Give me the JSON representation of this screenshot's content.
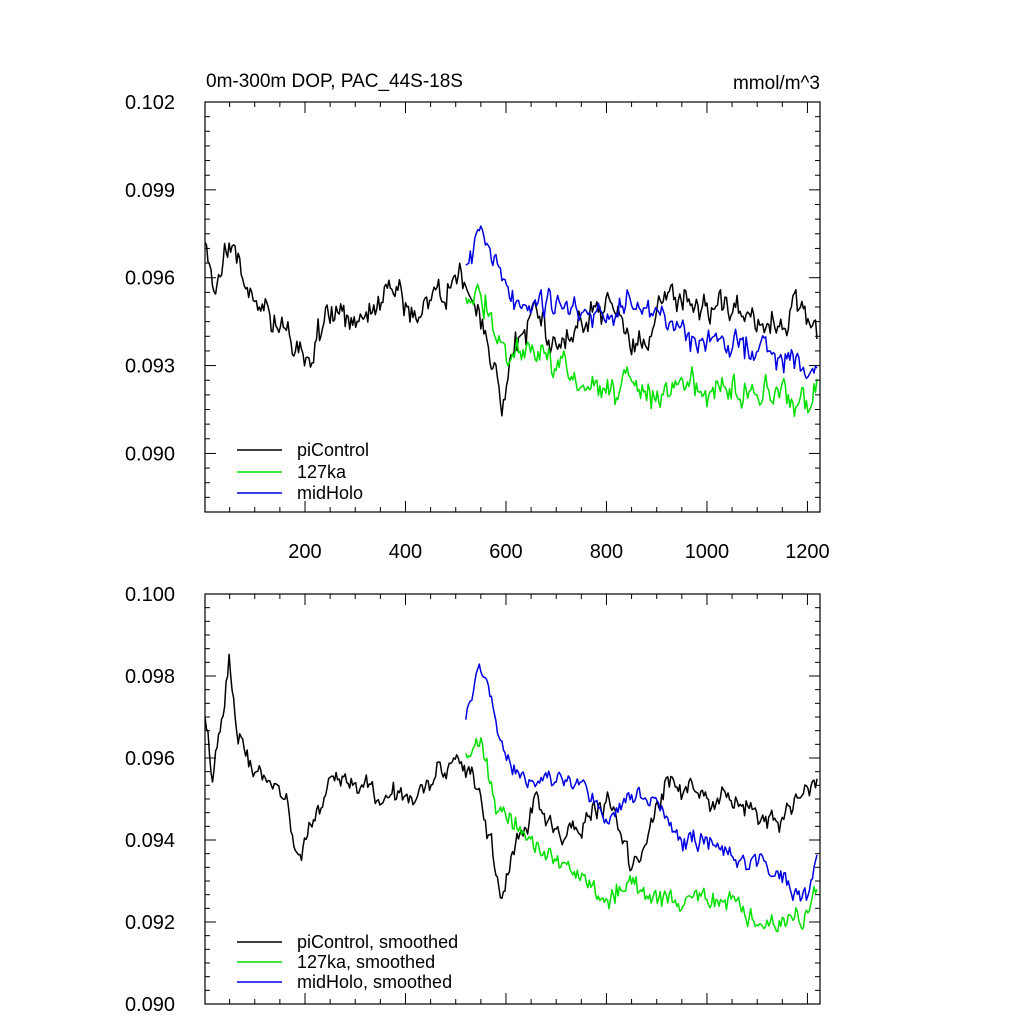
{
  "chart_data": [
    {
      "type": "line",
      "title": "0m-300m DOP, PAC_44S-18S",
      "units": "mmol/m^3",
      "xlabel": "",
      "ylabel": "",
      "xlim": [
        1,
        1225
      ],
      "ylim": [
        0.088,
        0.102
      ],
      "x_ticks": [
        200,
        400,
        600,
        800,
        1000,
        1200
      ],
      "x_tick_labels": [
        "200",
        "400",
        "600",
        "800",
        "1000",
        "1200"
      ],
      "y_ticks": [
        0.09,
        0.093,
        0.096,
        0.099,
        0.102
      ],
      "y_tick_labels": [
        "0.090",
        "0.093",
        "0.096",
        "0.099",
        "0.102"
      ],
      "legend_position": "bottom-left",
      "series": [
        {
          "name": "piControl",
          "color": "#000000",
          "x_range": [
            1,
            1220
          ],
          "noise_amplitude": 0.0014,
          "anchors": [
            [
              1,
              0.097
            ],
            [
              20,
              0.095
            ],
            [
              40,
              0.0968
            ],
            [
              60,
              0.0975
            ],
            [
              80,
              0.0955
            ],
            [
              100,
              0.095
            ],
            [
              150,
              0.0945
            ],
            [
              190,
              0.0935
            ],
            [
              200,
              0.0932
            ],
            [
              250,
              0.095
            ],
            [
              300,
              0.0945
            ],
            [
              350,
              0.0948
            ],
            [
              380,
              0.096
            ],
            [
              420,
              0.0945
            ],
            [
              460,
              0.0955
            ],
            [
              520,
              0.096
            ],
            [
              560,
              0.094
            ],
            [
              590,
              0.0915
            ],
            [
              620,
              0.0935
            ],
            [
              650,
              0.095
            ],
            [
              700,
              0.0935
            ],
            [
              750,
              0.0945
            ],
            [
              800,
              0.095
            ],
            [
              850,
              0.094
            ],
            [
              880,
              0.0935
            ],
            [
              920,
              0.0955
            ],
            [
              1000,
              0.095
            ],
            [
              1050,
              0.095
            ],
            [
              1100,
              0.094
            ],
            [
              1150,
              0.0945
            ],
            [
              1190,
              0.095
            ],
            [
              1220,
              0.0945
            ]
          ]
        },
        {
          "name": "127ka",
          "color": "#00e000",
          "x_range": [
            520,
            1220
          ],
          "noise_amplitude": 0.0013,
          "anchors": [
            [
              520,
              0.0955
            ],
            [
              560,
              0.095
            ],
            [
              600,
              0.0935
            ],
            [
              650,
              0.0935
            ],
            [
              700,
              0.093
            ],
            [
              750,
              0.0925
            ],
            [
              800,
              0.092
            ],
            [
              850,
              0.0925
            ],
            [
              900,
              0.092
            ],
            [
              950,
              0.0925
            ],
            [
              1000,
              0.092
            ],
            [
              1050,
              0.0925
            ],
            [
              1100,
              0.092
            ],
            [
              1150,
              0.092
            ],
            [
              1200,
              0.0918
            ],
            [
              1220,
              0.0925
            ]
          ]
        },
        {
          "name": "midHolo",
          "color": "#0000e0",
          "x_range": [
            520,
            1220
          ],
          "noise_amplitude": 0.0013,
          "anchors": [
            [
              520,
              0.096
            ],
            [
              545,
              0.0975
            ],
            [
              580,
              0.0965
            ],
            [
              620,
              0.095
            ],
            [
              700,
              0.095
            ],
            [
              750,
              0.095
            ],
            [
              800,
              0.0945
            ],
            [
              850,
              0.095
            ],
            [
              900,
              0.095
            ],
            [
              950,
              0.094
            ],
            [
              1000,
              0.094
            ],
            [
              1050,
              0.0935
            ],
            [
              1100,
              0.0935
            ],
            [
              1150,
              0.0935
            ],
            [
              1200,
              0.093
            ],
            [
              1220,
              0.093
            ]
          ]
        }
      ]
    },
    {
      "type": "line",
      "title": "",
      "xlabel": "",
      "ylabel": "",
      "xlim": [
        1,
        1225
      ],
      "ylim": [
        0.09,
        0.1
      ],
      "x_ticks": [
        200,
        400,
        600,
        800,
        1000,
        1200
      ],
      "x_tick_labels": [],
      "y_ticks": [
        0.09,
        0.092,
        0.094,
        0.096,
        0.098,
        0.1
      ],
      "y_tick_labels": [
        "0.090",
        "0.092",
        "0.094",
        "0.096",
        "0.098",
        "0.100"
      ],
      "legend_position": "bottom-left",
      "series": [
        {
          "name": "piControl, smoothed",
          "color": "#000000",
          "x_range": [
            1,
            1220
          ],
          "noise_amplitude": 0.0007,
          "anchors": [
            [
              1,
              0.0972
            ],
            [
              15,
              0.0955
            ],
            [
              30,
              0.0965
            ],
            [
              50,
              0.0985
            ],
            [
              60,
              0.097
            ],
            [
              80,
              0.096
            ],
            [
              120,
              0.0955
            ],
            [
              160,
              0.095
            ],
            [
              185,
              0.0935
            ],
            [
              200,
              0.094
            ],
            [
              250,
              0.0955
            ],
            [
              300,
              0.0955
            ],
            [
              350,
              0.095
            ],
            [
              400,
              0.095
            ],
            [
              450,
              0.0955
            ],
            [
              500,
              0.096
            ],
            [
              540,
              0.0955
            ],
            [
              570,
              0.094
            ],
            [
              590,
              0.0925
            ],
            [
              620,
              0.094
            ],
            [
              660,
              0.095
            ],
            [
              700,
              0.094
            ],
            [
              750,
              0.0945
            ],
            [
              800,
              0.095
            ],
            [
              850,
              0.0935
            ],
            [
              880,
              0.094
            ],
            [
              920,
              0.0955
            ],
            [
              1000,
              0.095
            ],
            [
              1050,
              0.095
            ],
            [
              1100,
              0.0945
            ],
            [
              1150,
              0.0945
            ],
            [
              1190,
              0.095
            ],
            [
              1215,
              0.0955
            ]
          ]
        },
        {
          "name": "127ka, smoothed",
          "color": "#00e000",
          "x_range": [
            520,
            1220
          ],
          "noise_amplitude": 0.0007,
          "anchors": [
            [
              520,
              0.096
            ],
            [
              550,
              0.0965
            ],
            [
              580,
              0.095
            ],
            [
              600,
              0.0945
            ],
            [
              650,
              0.094
            ],
            [
              700,
              0.0935
            ],
            [
              750,
              0.093
            ],
            [
              800,
              0.0925
            ],
            [
              850,
              0.093
            ],
            [
              900,
              0.0925
            ],
            [
              950,
              0.0925
            ],
            [
              1000,
              0.0925
            ],
            [
              1050,
              0.0925
            ],
            [
              1100,
              0.092
            ],
            [
              1150,
              0.092
            ],
            [
              1200,
              0.0922
            ],
            [
              1220,
              0.0928
            ]
          ]
        },
        {
          "name": "midHolo, smoothed",
          "color": "#0000e0",
          "x_range": [
            520,
            1220
          ],
          "noise_amplitude": 0.0006,
          "anchors": [
            [
              520,
              0.097
            ],
            [
              545,
              0.0983
            ],
            [
              570,
              0.0975
            ],
            [
              600,
              0.096
            ],
            [
              650,
              0.0955
            ],
            [
              700,
              0.0955
            ],
            [
              750,
              0.0955
            ],
            [
              800,
              0.0945
            ],
            [
              850,
              0.095
            ],
            [
              900,
              0.095
            ],
            [
              950,
              0.094
            ],
            [
              1000,
              0.094
            ],
            [
              1050,
              0.0935
            ],
            [
              1100,
              0.0935
            ],
            [
              1150,
              0.093
            ],
            [
              1200,
              0.0925
            ],
            [
              1220,
              0.0935
            ]
          ]
        }
      ]
    }
  ]
}
